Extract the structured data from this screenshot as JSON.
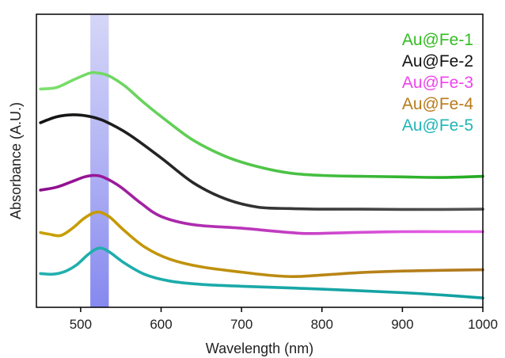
{
  "chart_data": {
    "type": "line",
    "title": "",
    "xlabel": "Wavelength (nm)",
    "ylabel": "Absorbance (A.U.)",
    "xlim": [
      445,
      1000
    ],
    "ylim": [
      0,
      10
    ],
    "x_ticks": [
      500,
      600,
      700,
      800,
      900,
      1000
    ],
    "x_tick_labels": [
      "500",
      "600",
      "700",
      "800",
      "900",
      "1000"
    ],
    "y_ticks_shown": false,
    "grid": false,
    "legend_position": "top-right",
    "highlight_band": {
      "x_start": 512,
      "x_end": 535,
      "color": "#c7c8f5"
    },
    "series": [
      {
        "name": "Au@Fe-1",
        "color_start": "#7fe070",
        "color_end": "#22aa22",
        "points": [
          [
            450,
            7.45
          ],
          [
            470,
            7.5
          ],
          [
            490,
            7.75
          ],
          [
            510,
            7.98
          ],
          [
            520,
            8.0
          ],
          [
            535,
            7.9
          ],
          [
            555,
            7.55
          ],
          [
            580,
            6.95
          ],
          [
            610,
            6.3
          ],
          [
            640,
            5.7
          ],
          [
            680,
            5.15
          ],
          [
            720,
            4.8
          ],
          [
            760,
            4.58
          ],
          [
            800,
            4.5
          ],
          [
            850,
            4.47
          ],
          [
            900,
            4.45
          ],
          [
            950,
            4.43
          ],
          [
            1000,
            4.47
          ]
        ]
      },
      {
        "name": "Au@Fe-2",
        "color_start": "#111111",
        "color_end": "#555555",
        "points": [
          [
            450,
            6.3
          ],
          [
            470,
            6.5
          ],
          [
            490,
            6.57
          ],
          [
            510,
            6.52
          ],
          [
            530,
            6.35
          ],
          [
            560,
            5.9
          ],
          [
            600,
            5.1
          ],
          [
            640,
            4.25
          ],
          [
            680,
            3.7
          ],
          [
            720,
            3.42
          ],
          [
            760,
            3.37
          ],
          [
            800,
            3.35
          ],
          [
            850,
            3.35
          ],
          [
            900,
            3.34
          ],
          [
            950,
            3.34
          ],
          [
            1000,
            3.35
          ]
        ]
      },
      {
        "name": "Au@Fe-3",
        "color_start": "#8b0b8b",
        "color_end": "#ee66ee",
        "points": [
          [
            450,
            4.0
          ],
          [
            470,
            4.1
          ],
          [
            490,
            4.3
          ],
          [
            505,
            4.45
          ],
          [
            518,
            4.5
          ],
          [
            530,
            4.42
          ],
          [
            550,
            4.1
          ],
          [
            575,
            3.55
          ],
          [
            600,
            3.1
          ],
          [
            640,
            2.82
          ],
          [
            700,
            2.7
          ],
          [
            760,
            2.55
          ],
          [
            790,
            2.52
          ],
          [
            850,
            2.56
          ],
          [
            900,
            2.58
          ],
          [
            950,
            2.58
          ],
          [
            1000,
            2.58
          ]
        ]
      },
      {
        "name": "Au@Fe-4",
        "color_start": "#c9a000",
        "color_end": "#b07820",
        "points": [
          [
            450,
            2.55
          ],
          [
            460,
            2.5
          ],
          [
            475,
            2.45
          ],
          [
            490,
            2.7
          ],
          [
            505,
            3.05
          ],
          [
            520,
            3.25
          ],
          [
            535,
            3.1
          ],
          [
            555,
            2.6
          ],
          [
            580,
            2.05
          ],
          [
            610,
            1.65
          ],
          [
            650,
            1.38
          ],
          [
            700,
            1.2
          ],
          [
            740,
            1.08
          ],
          [
            770,
            1.05
          ],
          [
            810,
            1.12
          ],
          [
            860,
            1.2
          ],
          [
            920,
            1.25
          ],
          [
            1000,
            1.28
          ]
        ]
      },
      {
        "name": "Au@Fe-5",
        "color_start": "#22b0b0",
        "color_end": "#11a0a0",
        "points": [
          [
            450,
            1.15
          ],
          [
            465,
            1.13
          ],
          [
            480,
            1.22
          ],
          [
            495,
            1.45
          ],
          [
            510,
            1.82
          ],
          [
            523,
            2.02
          ],
          [
            535,
            1.9
          ],
          [
            555,
            1.5
          ],
          [
            580,
            1.12
          ],
          [
            610,
            0.9
          ],
          [
            650,
            0.78
          ],
          [
            700,
            0.72
          ],
          [
            800,
            0.62
          ],
          [
            900,
            0.5
          ],
          [
            950,
            0.42
          ],
          [
            1000,
            0.32
          ]
        ]
      }
    ]
  },
  "legend": [
    {
      "label": "Au@Fe-1",
      "color": "#33bb22"
    },
    {
      "label": "Au@Fe-2",
      "color": "#111111"
    },
    {
      "label": "Au@Fe-3",
      "color": "#ee44ee"
    },
    {
      "label": "Au@Fe-4",
      "color": "#b87a1a"
    },
    {
      "label": "Au@Fe-5",
      "color": "#22b5b5"
    }
  ]
}
